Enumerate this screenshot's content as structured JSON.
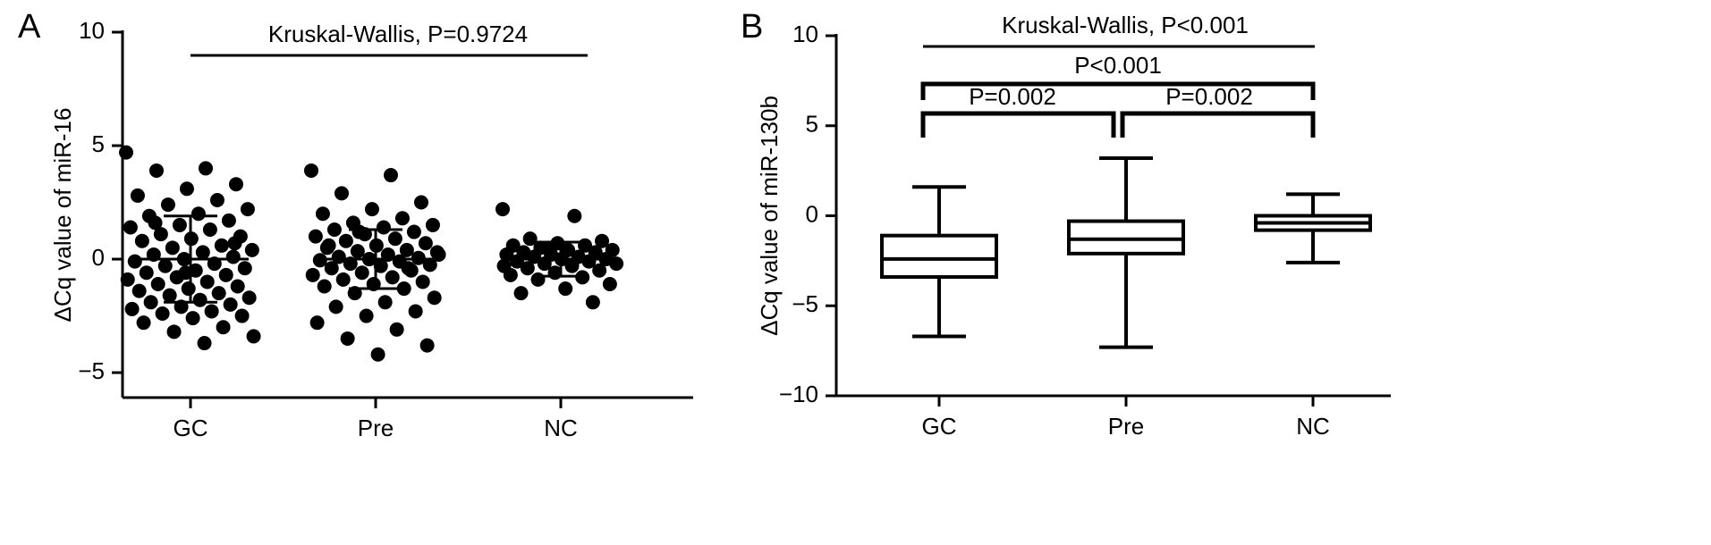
{
  "chart_data": [
    {
      "type": "strip",
      "label": "A",
      "title": "Kruskal-Wallis, P=0.9724",
      "ylabel": "ΔCq value of miR-16",
      "categories": [
        "GC",
        "Pre",
        "NC"
      ],
      "groups": [
        [
          4.7,
          4.0,
          3.9,
          3.3,
          3.1,
          2.8,
          2.6,
          2.4,
          2.2,
          2.0,
          1.9,
          1.7,
          1.5,
          1.4,
          1.3,
          1.1,
          1.0,
          0.9,
          0.8,
          0.6,
          0.5,
          0.4,
          0.3,
          0.2,
          0.1,
          0.0,
          -0.1,
          -0.2,
          -0.3,
          -0.4,
          -0.5,
          -0.6,
          -0.7,
          -0.8,
          -0.9,
          -1.0,
          -1.1,
          -1.2,
          -1.3,
          -1.4,
          -1.5,
          -1.6,
          -1.7,
          -1.8,
          -1.9,
          -2.0,
          -2.1,
          -2.2,
          -2.3,
          -2.4,
          -2.5,
          -2.6,
          -2.8,
          -3.0,
          -3.2,
          -3.4,
          -3.7,
          1.6,
          0.7,
          -0.6
        ],
        [
          3.9,
          3.7,
          2.9,
          2.5,
          2.2,
          2.0,
          1.8,
          1.6,
          1.5,
          1.4,
          1.3,
          1.2,
          1.1,
          1.0,
          0.9,
          0.8,
          0.7,
          0.6,
          0.5,
          0.4,
          0.35,
          0.3,
          0.2,
          0.1,
          0.05,
          0.0,
          -0.05,
          -0.1,
          -0.2,
          -0.25,
          -0.3,
          -0.4,
          -0.5,
          -0.6,
          -0.7,
          -0.8,
          -0.9,
          -1.0,
          -1.1,
          -1.2,
          -1.3,
          -1.5,
          -1.7,
          -1.9,
          -2.1,
          -2.3,
          -2.5,
          -2.8,
          -3.1,
          -3.5,
          -3.8,
          -4.2,
          0.6,
          -0.4,
          1.2,
          0.2
        ],
        [
          2.2,
          1.9,
          0.9,
          0.8,
          0.7,
          0.6,
          0.6,
          0.5,
          0.4,
          0.4,
          0.3,
          0.3,
          0.2,
          0.2,
          0.1,
          0.1,
          0.0,
          0.0,
          -0.1,
          -0.1,
          -0.2,
          -0.2,
          -0.3,
          -0.4,
          -0.5,
          -0.6,
          -0.7,
          -0.8,
          -0.9,
          -1.1,
          -1.3,
          -1.5,
          -1.9,
          0.5,
          -0.3
        ]
      ],
      "means": [
        0,
        0,
        0
      ],
      "sds": [
        1.9,
        1.3,
        0.75
      ],
      "color": "#000000",
      "ylim": [
        -6.1,
        10
      ],
      "yticks": [
        {
          "value": -5,
          "label": "−5"
        },
        0,
        5,
        10
      ]
    },
    {
      "type": "box",
      "label": "B",
      "title": "Kruskal-Wallis, P<0.001",
      "annotations": [
        "P<0.001",
        "P=0.002",
        "P=0.002"
      ],
      "ylabel": "ΔCq value of miR-130b",
      "categories": [
        "GC",
        "Pre",
        "NC"
      ],
      "boxes": [
        {
          "min": -6.7,
          "q1": -3.4,
          "median": -2.4,
          "q3": -1.1,
          "max": 1.6
        },
        {
          "min": -7.3,
          "q1": -2.1,
          "median": -1.3,
          "q3": -0.3,
          "max": 3.2
        },
        {
          "min": -2.6,
          "q1": -0.8,
          "median": -0.4,
          "q3": 0,
          "max": 1.2
        }
      ],
      "color": "#000000",
      "ylim": [
        -10,
        10
      ],
      "yticks": [
        {
          "value": -10,
          "label": "−10"
        },
        {
          "value": -5,
          "label": "−5"
        },
        0,
        5,
        10
      ]
    }
  ]
}
